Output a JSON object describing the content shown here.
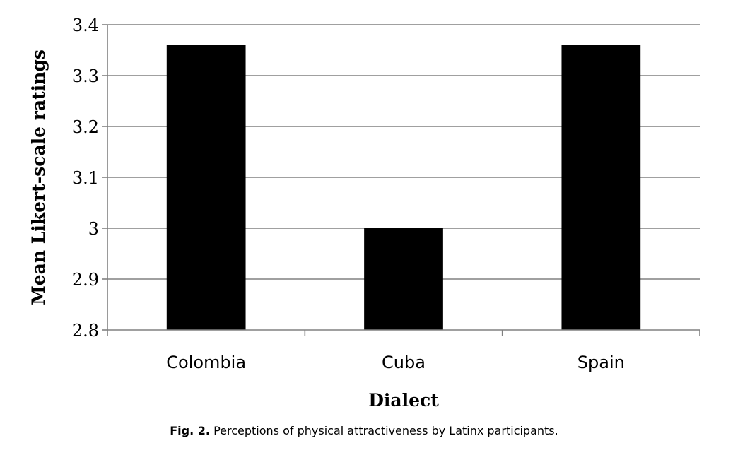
{
  "chart_data": {
    "type": "bar",
    "categories": [
      "Colombia",
      "Cuba",
      "Spain"
    ],
    "values": [
      3.36,
      3.0,
      3.36
    ],
    "xlabel": "Dialect",
    "ylabel": "Mean Likert-scale ratings",
    "ylim": [
      2.8,
      3.4
    ],
    "yticks": [
      "2.8",
      "2.9",
      "3",
      "3.1",
      "3.2",
      "3.3",
      "3.4"
    ],
    "grid": true,
    "bar_color": "#000000"
  },
  "caption": {
    "label": "Fig. 2.",
    "text": "Perceptions of physical attractiveness by Latinx participants."
  }
}
